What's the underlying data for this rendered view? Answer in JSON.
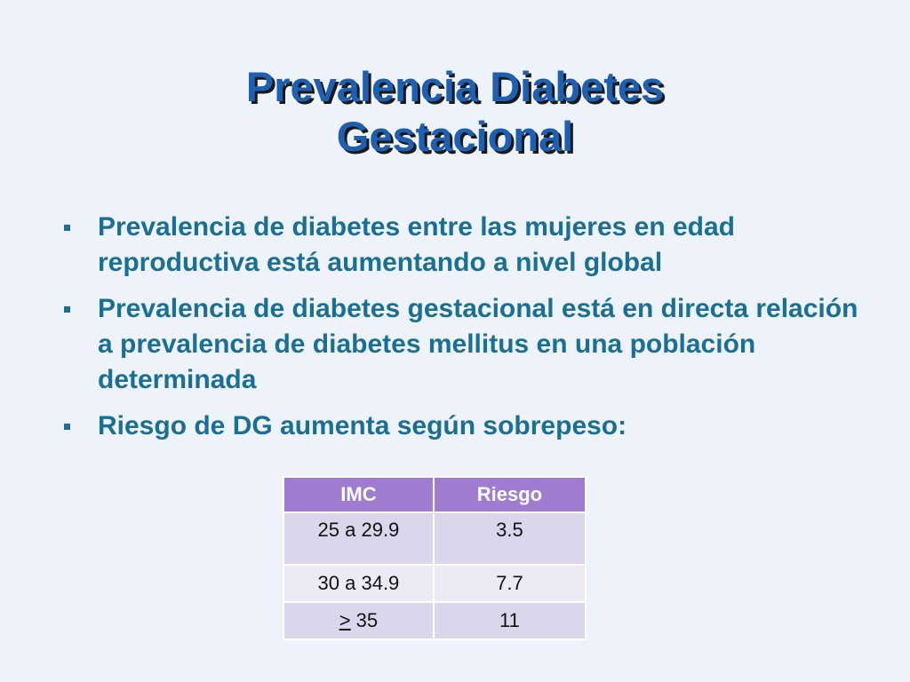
{
  "slide": {
    "title_line1": "Prevalencia Diabetes",
    "title_line2": "Gestacional",
    "bullets": [
      "Prevalencia de diabetes entre las mujeres en edad reproductiva está aumentando a nivel global",
      "Prevalencia de diabetes gestacional está en directa relación a prevalencia de diabetes mellitus en una población determinada",
      "Riesgo de DG aumenta según sobrepeso:"
    ],
    "table": {
      "headers": [
        "IMC",
        "Riesgo"
      ],
      "rows": [
        [
          "25 a 29.9",
          "3.5"
        ],
        [
          "30 a 34.9",
          "7.7"
        ],
        [
          "> 35",
          "11"
        ]
      ],
      "row3_symbol": ">",
      "row3_value": "35"
    },
    "colors": {
      "background": "#eef2fa",
      "title": "#1f5fb1",
      "text": "#1a6f95",
      "header": "#9f7cd0",
      "row_a": "#dcd6ec",
      "row_b": "#eeeaf5"
    }
  }
}
